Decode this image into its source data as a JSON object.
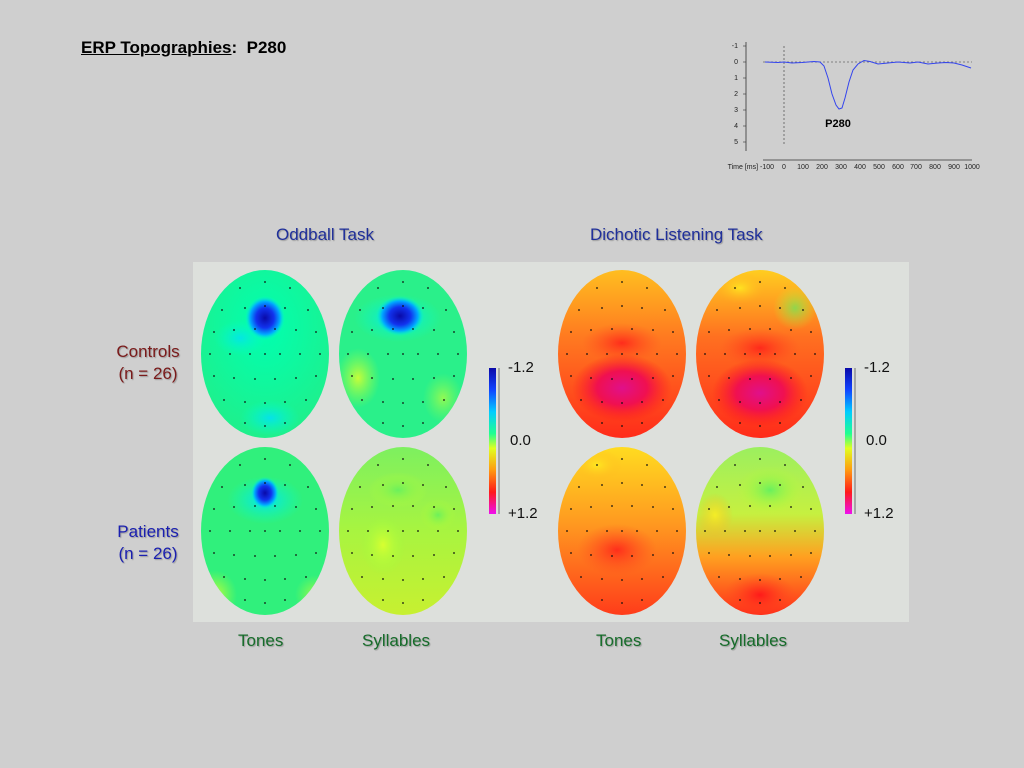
{
  "title": {
    "underlined": "ERP Topographies",
    "colon": ":",
    "component": "P280"
  },
  "erp": {
    "y_ticks": [
      "-1",
      "0",
      "1",
      "2",
      "3",
      "4",
      "5"
    ],
    "x_tick_values": [
      "Time [ms] -100",
      "0",
      "100",
      "200",
      "300",
      "400",
      "500",
      "600",
      "700",
      "800",
      "900",
      "1000"
    ],
    "peak_label": "P280"
  },
  "tasks": {
    "oddball": "Oddball Task",
    "dichotic": "Dichotic Listening Task"
  },
  "groups": {
    "controls": {
      "name": "Controls",
      "n": "(n = 26)",
      "color": "#7a1a1a"
    },
    "patients": {
      "name": "Patients",
      "n": "(n = 26)",
      "color": "#1a1fb0"
    }
  },
  "conditions": {
    "tones": "Tones",
    "syllables": "Syllables"
  },
  "colorbar": {
    "top": "-1.2",
    "mid": "0.0",
    "bottom": "+1.2"
  },
  "colors": {
    "title": "#1f2f9a",
    "condition": "#166c2a",
    "erp_trace": "#3344ee"
  }
}
